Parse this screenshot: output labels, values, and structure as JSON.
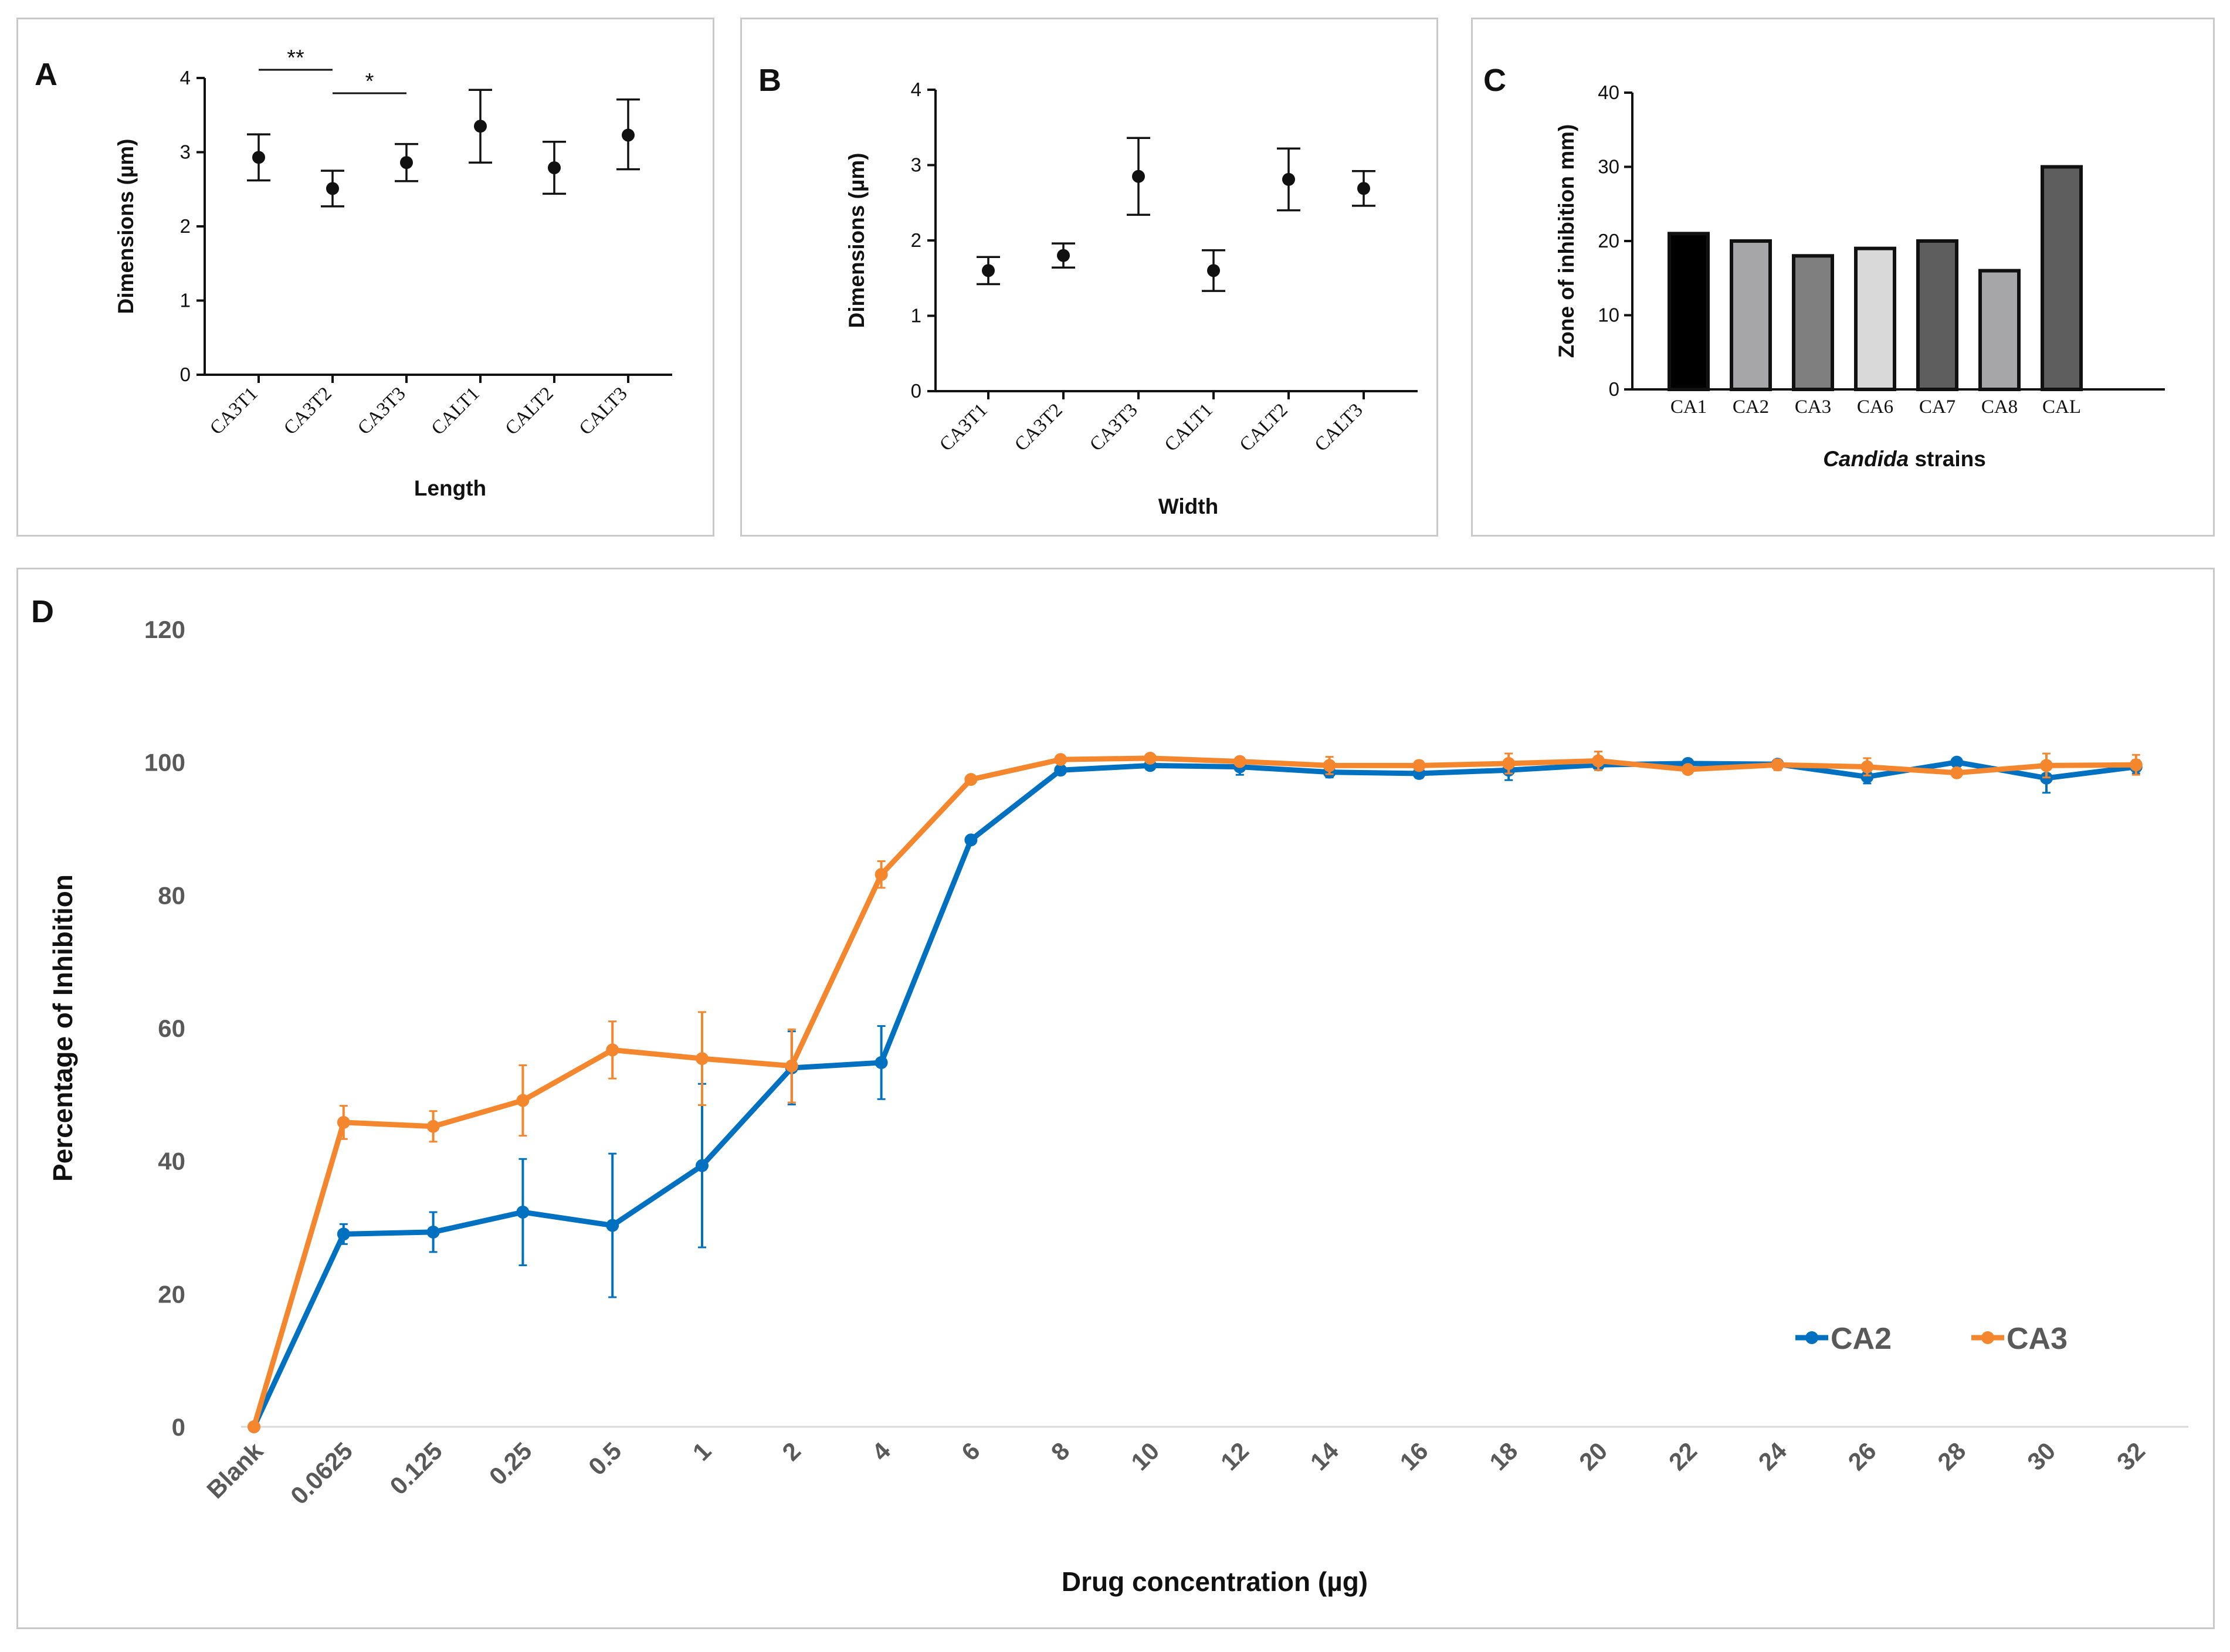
{
  "chart_data": [
    {
      "panel": "A",
      "type": "scatter",
      "categories": [
        "CA3T1",
        "CA3T2",
        "CA3T3",
        "CALT1",
        "CALT2",
        "CALT3"
      ],
      "values": [
        2.93,
        2.51,
        2.86,
        3.35,
        2.79,
        3.23
      ],
      "err_low": [
        2.62,
        2.27,
        2.61,
        2.86,
        2.44,
        2.77
      ],
      "err_high": [
        3.24,
        2.75,
        3.11,
        3.84,
        3.14,
        3.71
      ],
      "xlabel": "Length",
      "ylabel": "Dimensions (µm)",
      "ylim": [
        0,
        4
      ],
      "yticks": [
        "0",
        "1",
        "2",
        "3",
        "4"
      ],
      "significance": [
        {
          "from": 0,
          "to": 1,
          "label": "**"
        },
        {
          "from": 1,
          "to": 2,
          "label": "*"
        }
      ]
    },
    {
      "panel": "B",
      "type": "scatter",
      "categories": [
        "CA3T1",
        "CA3T2",
        "CA3T3",
        "CALT1",
        "CALT2",
        "CALT3"
      ],
      "values": [
        1.6,
        1.8,
        2.85,
        1.6,
        2.81,
        2.69
      ],
      "err_low": [
        1.42,
        1.64,
        2.34,
        1.33,
        2.4,
        2.46
      ],
      "err_high": [
        1.78,
        1.96,
        3.36,
        1.87,
        3.22,
        2.92
      ],
      "xlabel": "Width",
      "ylabel": "Dimensions (µm)",
      "ylim": [
        0,
        4
      ],
      "yticks": [
        "0",
        "1",
        "2",
        "3",
        "4"
      ]
    },
    {
      "panel": "C",
      "type": "bar",
      "categories": [
        "CA1",
        "CA2",
        "CA3",
        "CA6",
        "CA7",
        "CA8",
        "CAL"
      ],
      "values": [
        21,
        20,
        18,
        19,
        20,
        16,
        30
      ],
      "colors": [
        "#000000",
        "#a6a6a8",
        "#7f7f7f",
        "#d9d9d9",
        "#5e5e5e",
        "#a6a6a8",
        "#5e5e5e"
      ],
      "xlabel_italic": "Candida",
      "xlabel_rest": " strains",
      "ylabel": "Zone of inhibition  mm)",
      "ylim": [
        0,
        40
      ],
      "yticks": [
        "0",
        "10",
        "20",
        "30",
        "40"
      ]
    },
    {
      "panel": "D",
      "type": "line",
      "categories": [
        "Blank",
        "0.0625",
        "0.125",
        "0.25",
        "0.5",
        "1",
        "2",
        "4",
        "6",
        "8",
        "10",
        "12",
        "14",
        "16",
        "18",
        "20",
        "22",
        "24",
        "26",
        "28",
        "30",
        "32"
      ],
      "series": [
        {
          "name": "CA2",
          "color": "#0070c0",
          "values": [
            0,
            29,
            29.3,
            32.3,
            30.3,
            39.3,
            54,
            54.8,
            88.3,
            98.8,
            99.5,
            99.3,
            98.5,
            98.3,
            98.8,
            99.6,
            99.8,
            99.7,
            97.8,
            100,
            97.6,
            99.3
          ],
          "errors": [
            0,
            1.5,
            3.0,
            8.0,
            10.8,
            12.3,
            5.5,
            5.5,
            0,
            0,
            0.5,
            1.2,
            0.8,
            0.7,
            1.5,
            0.7,
            0,
            0.5,
            1.0,
            0.5,
            2.2,
            1.0
          ]
        },
        {
          "name": "CA3",
          "color": "#f4872e",
          "values": [
            0,
            45.8,
            45.2,
            49.1,
            56.7,
            55.4,
            54.3,
            83.1,
            97.4,
            100.4,
            100.6,
            100.1,
            99.5,
            99.5,
            99.8,
            100.2,
            98.9,
            99.6,
            99.3,
            98.4,
            99.5,
            99.6
          ],
          "errors": [
            0,
            2.5,
            2.3,
            5.3,
            4.3,
            7.0,
            5.5,
            2.0,
            0,
            0.3,
            0.3,
            0.5,
            1.3,
            0.7,
            1.5,
            1.4,
            0.5,
            0.8,
            1.3,
            0.5,
            1.8,
            1.5
          ]
        }
      ],
      "xlabel": "Drug concentration (µg)",
      "ylabel": "Percentage of Inhibition",
      "ylim": [
        0,
        120
      ],
      "yticks": [
        "0",
        "20",
        "40",
        "60",
        "80",
        "100",
        "120"
      ]
    }
  ]
}
